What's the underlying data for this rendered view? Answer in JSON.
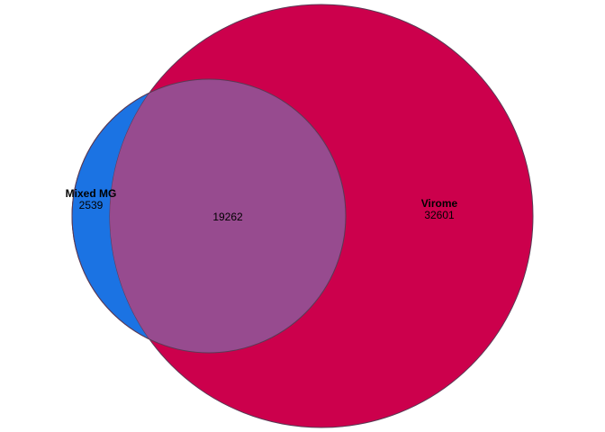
{
  "venn": {
    "colors": {
      "set_a": "#1b73e3",
      "set_b": "#cc004c",
      "overlap": "#974b8f",
      "outline": "#5a3a55",
      "background": "#ffffff"
    },
    "set_a": {
      "name": "Mixed MG",
      "only_count": "2539"
    },
    "set_b": {
      "name": "Virome",
      "only_count": "32601"
    },
    "overlap": {
      "count": "19262"
    }
  }
}
